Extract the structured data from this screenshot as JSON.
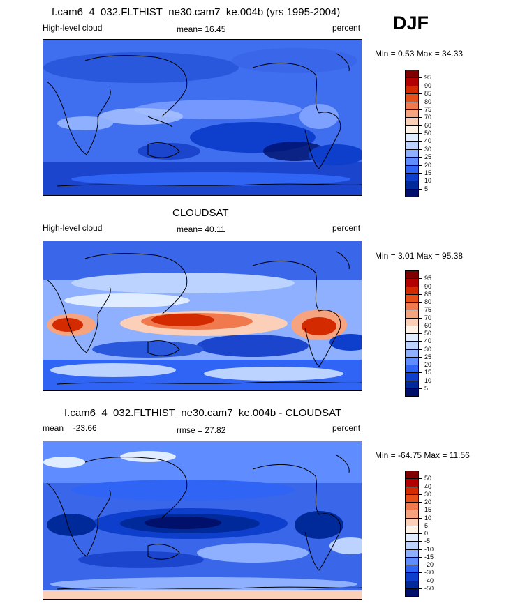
{
  "season": "DJF",
  "panels": [
    {
      "title": "f.cam6_4_032.FLTHIST_ne30.cam7_ke.004b (yrs 1995-2004)",
      "left_label": "High-level cloud",
      "center_label": "mean=  16.45",
      "right_label": "percent",
      "minmax": "Min =   0.53 Max =  34.33",
      "colorbar": {
        "labels": [
          "95",
          "90",
          "85",
          "80",
          "75",
          "70",
          "60",
          "50",
          "40",
          "30",
          "25",
          "20",
          "15",
          "10",
          "5"
        ],
        "colors": [
          "#800000",
          "#b30000",
          "#d42a00",
          "#e8501a",
          "#f07a4d",
          "#f6a37f",
          "#fbcfb8",
          "#fff3e8",
          "#e0ecff",
          "#bcd3ff",
          "#8eb0ff",
          "#5f8cff",
          "#2f64f5",
          "#0d3fcc",
          "#002a99",
          "#00106b"
        ]
      }
    },
    {
      "title": "CLOUDSAT",
      "left_label": "High-level cloud",
      "center_label": "mean=  40.11",
      "right_label": "percent",
      "minmax": "Min =   3.01 Max =  95.38",
      "colorbar": {
        "labels": [
          "95",
          "90",
          "85",
          "80",
          "75",
          "70",
          "60",
          "50",
          "40",
          "30",
          "25",
          "20",
          "15",
          "10",
          "5"
        ],
        "colors": [
          "#800000",
          "#b30000",
          "#d42a00",
          "#e8501a",
          "#f07a4d",
          "#f6a37f",
          "#fbcfb8",
          "#fff3e8",
          "#e0ecff",
          "#bcd3ff",
          "#8eb0ff",
          "#5f8cff",
          "#2f64f5",
          "#0d3fcc",
          "#002a99",
          "#00106b"
        ]
      }
    },
    {
      "title": "f.cam6_4_032.FLTHIST_ne30.cam7_ke.004b - CLOUDSAT",
      "left_label": "mean = -23.66",
      "center_label": "rmse =  27.82",
      "right_label": "percent",
      "minmax": "Min = -64.75 Max =  11.56",
      "colorbar": {
        "labels": [
          "50",
          "40",
          "30",
          "20",
          "15",
          "10",
          "5",
          "0",
          "-5",
          "-10",
          "-15",
          "-20",
          "-30",
          "-40",
          "-50"
        ],
        "colors": [
          "#800000",
          "#b30000",
          "#d42a00",
          "#e8501a",
          "#f07a4d",
          "#f6a37f",
          "#fbcfb8",
          "#fff3e8",
          "#e0ecff",
          "#bcd3ff",
          "#8eb0ff",
          "#5f8cff",
          "#2f64f5",
          "#0d3fcc",
          "#002a99",
          "#00106b"
        ]
      }
    }
  ]
}
